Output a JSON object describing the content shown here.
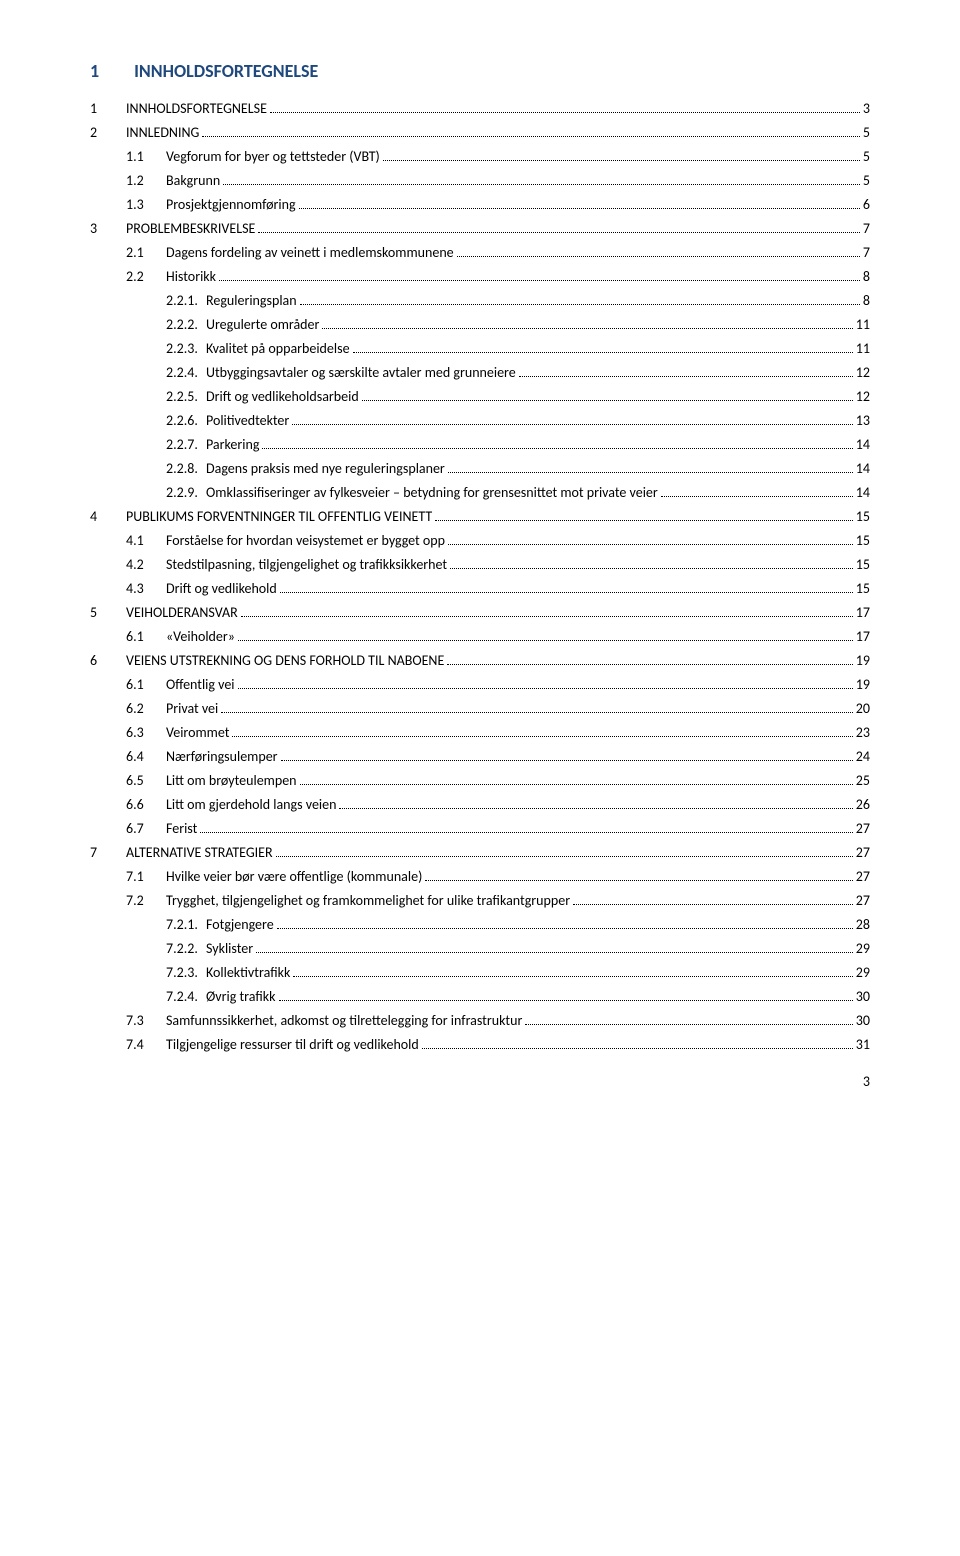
{
  "header": {
    "number": "1",
    "title": "INNHOLDSFORTEGNELSE"
  },
  "footer_page_number": "3",
  "toc": [
    {
      "level": 0,
      "num": "1",
      "label": "INNHOLDSFORTEGNELSE",
      "page": "3"
    },
    {
      "level": 0,
      "num": "2",
      "label": "INNLEDNING",
      "page": "5"
    },
    {
      "level": 1,
      "num": "1.1",
      "label": "Vegforum for byer og tettsteder (VBT)",
      "page": "5"
    },
    {
      "level": 1,
      "num": "1.2",
      "label": "Bakgrunn",
      "page": "5"
    },
    {
      "level": 1,
      "num": "1.3",
      "label": "Prosjektgjennomføring",
      "page": "6"
    },
    {
      "level": 0,
      "num": "3",
      "label": "PROBLEMBESKRIVELSE",
      "page": "7"
    },
    {
      "level": 1,
      "num": "2.1",
      "label": "Dagens fordeling av veinett i medlemskommunene",
      "page": "7"
    },
    {
      "level": 1,
      "num": "2.2",
      "label": "Historikk",
      "page": "8"
    },
    {
      "level": 2,
      "num": "2.2.1.",
      "label": "Reguleringsplan",
      "page": "8"
    },
    {
      "level": 2,
      "num": "2.2.2.",
      "label": "Uregulerte områder",
      "page": "11"
    },
    {
      "level": 2,
      "num": "2.2.3.",
      "label": "Kvalitet på opparbeidelse",
      "page": "11"
    },
    {
      "level": 2,
      "num": "2.2.4.",
      "label": "Utbyggingsavtaler og særskilte avtaler med grunneiere",
      "page": "12"
    },
    {
      "level": 2,
      "num": "2.2.5.",
      "label": "Drift og vedlikeholdsarbeid",
      "page": "12"
    },
    {
      "level": 2,
      "num": "2.2.6.",
      "label": "Politivedtekter",
      "page": "13"
    },
    {
      "level": 2,
      "num": "2.2.7.",
      "label": "Parkering",
      "page": "14"
    },
    {
      "level": 2,
      "num": "2.2.8.",
      "label": "Dagens praksis med nye reguleringsplaner",
      "page": "14"
    },
    {
      "level": 2,
      "num": "2.2.9.",
      "label": "Omklassifiseringer av fylkesveier – betydning for grensesnittet mot private veier",
      "page": "14"
    },
    {
      "level": 0,
      "num": "4",
      "label": "PUBLIKUMS FORVENTNINGER TIL OFFENTLIG VEINETT",
      "page": "15"
    },
    {
      "level": 1,
      "num": "4.1",
      "label": "Forståelse for hvordan veisystemet er bygget opp",
      "page": "15"
    },
    {
      "level": 1,
      "num": "4.2",
      "label": "Stedstilpasning, tilgjengelighet og trafikksikkerhet",
      "page": "15"
    },
    {
      "level": 1,
      "num": "4.3",
      "label": "Drift og vedlikehold",
      "page": "15"
    },
    {
      "level": 0,
      "num": "5",
      "label": "VEIHOLDERANSVAR",
      "page": "17"
    },
    {
      "level": 1,
      "num": "6.1",
      "label": "«Veiholder»",
      "page": "17"
    },
    {
      "level": 0,
      "num": "6",
      "label": "VEIENS UTSTREKNING OG DENS FORHOLD TIL NABOENE",
      "page": "19"
    },
    {
      "level": 1,
      "num": "6.1",
      "label": "Offentlig vei",
      "page": "19"
    },
    {
      "level": 1,
      "num": "6.2",
      "label": "Privat vei",
      "page": "20"
    },
    {
      "level": 1,
      "num": "6.3",
      "label": "Veirommet",
      "page": "23"
    },
    {
      "level": 1,
      "num": "6.4",
      "label": "Nærføringsulemper",
      "page": "24"
    },
    {
      "level": 1,
      "num": "6.5",
      "label": "Litt om brøyteulempen",
      "page": "25"
    },
    {
      "level": 1,
      "num": "6.6",
      "label": "Litt om gjerdehold langs veien",
      "page": "26"
    },
    {
      "level": 1,
      "num": "6.7",
      "label": "Ferist",
      "page": "27"
    },
    {
      "level": 0,
      "num": "7",
      "label": "ALTERNATIVE STRATEGIER",
      "page": "27"
    },
    {
      "level": 1,
      "num": "7.1",
      "label": "Hvilke veier bør være offentlige (kommunale)",
      "page": "27"
    },
    {
      "level": 1,
      "num": "7.2",
      "label": "Trygghet, tilgjengelighet og framkommelighet for ulike trafikantgrupper",
      "page": "27"
    },
    {
      "level": 2,
      "num": "7.2.1.",
      "label": "Fotgjengere",
      "page": "28"
    },
    {
      "level": 2,
      "num": "7.2.2.",
      "label": "Syklister",
      "page": "29"
    },
    {
      "level": 2,
      "num": "7.2.3.",
      "label": "Kollektivtrafikk",
      "page": "29"
    },
    {
      "level": 2,
      "num": "7.2.4.",
      "label": "Øvrig trafikk",
      "page": "30"
    },
    {
      "level": 1,
      "num": "7.3",
      "label": "Samfunnssikkerhet, adkomst og tilrettelegging for infrastruktur",
      "page": "30"
    },
    {
      "level": 1,
      "num": "7.4",
      "label": "Tilgjengelige ressurser til drift og vedlikehold",
      "page": "31"
    }
  ]
}
